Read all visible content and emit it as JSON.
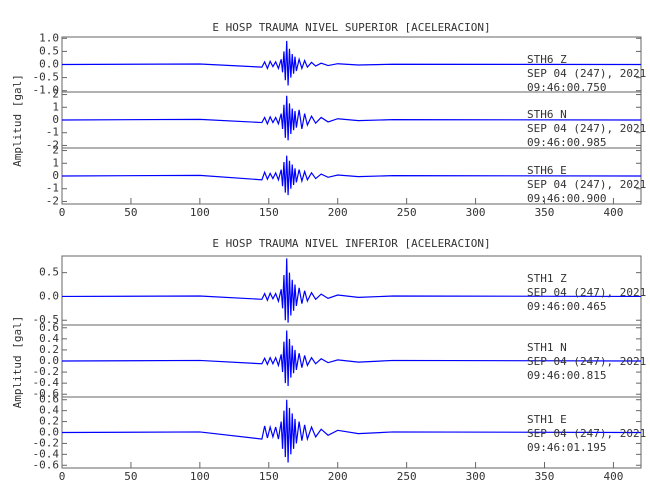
{
  "chart_data": [
    {
      "type": "line",
      "title": "E HOSP TRAUMA NIVEL SUPERIOR [ACELERACION]",
      "ylabel": "Amplitud [gal]",
      "xlim": [
        0,
        420
      ],
      "xticks": [
        0,
        50,
        100,
        150,
        200,
        250,
        300,
        350,
        400
      ],
      "panels": [
        {
          "station": "STH6   Z",
          "date": "SEP 04 (247), 2021",
          "time": "09:46:00.750",
          "ylim": [
            -1.05,
            1.05
          ],
          "yticks": [
            {
              "value": -1,
              "label": "-1.0"
            },
            -0.5,
            {
              "value": 0,
              "label": "0.0"
            },
            0.5,
            {
              "value": 1,
              "label": "1.0"
            }
          ],
          "series": [
            {
              "color": "#0000ff",
              "x": [
                0,
                100,
                145,
                147,
                149,
                151,
                153,
                155,
                157,
                159,
                160,
                161,
                162,
                163,
                164,
                165,
                166,
                167,
                168,
                169,
                170,
                172,
                174,
                176,
                178,
                181,
                184,
                188,
                193,
                200,
                215,
                240,
                420
              ],
              "values": [
                0,
                0.02,
                -0.1,
                0.1,
                -0.15,
                0.12,
                -0.08,
                0.1,
                -0.15,
                0.2,
                -0.3,
                0.5,
                -0.6,
                0.9,
                -0.8,
                0.6,
                -0.5,
                0.4,
                -0.35,
                0.3,
                -0.25,
                0.2,
                -0.15,
                0.15,
                -0.1,
                0.08,
                -0.06,
                0.05,
                -0.04,
                0.03,
                -0.02,
                0.01,
                0
              ]
            }
          ]
        },
        {
          "station": "STH6   N",
          "date": "SEP 04 (247), 2021",
          "time": "09:46:00.985",
          "ylim": [
            -2.2,
            2.2
          ],
          "yticks": [
            -2,
            -1,
            0,
            1,
            2
          ],
          "series": [
            {
              "color": "#0000ff",
              "x": [
                0,
                100,
                145,
                147,
                149,
                151,
                153,
                155,
                157,
                159,
                160,
                161,
                162,
                163,
                164,
                165,
                166,
                167,
                168,
                169,
                170,
                172,
                174,
                176,
                178,
                181,
                184,
                188,
                193,
                200,
                215,
                240,
                420
              ],
              "values": [
                0,
                0.05,
                -0.2,
                0.2,
                -0.3,
                0.25,
                -0.2,
                0.2,
                -0.3,
                0.5,
                -0.7,
                1.2,
                -1.4,
                1.9,
                -1.6,
                1.3,
                -1.1,
                0.9,
                -0.8,
                0.7,
                -0.6,
                0.8,
                -0.7,
                0.5,
                -0.4,
                0.3,
                -0.25,
                0.2,
                -0.15,
                0.1,
                -0.05,
                0.03,
                0
              ]
            }
          ]
        },
        {
          "station": "STH6   E",
          "date": "SEP 04 (247), 2021",
          "time": "09:46:00.900",
          "ylim": [
            -2.2,
            2.2
          ],
          "yticks": [
            -2,
            -1,
            0,
            1,
            2
          ],
          "series": [
            {
              "color": "#0000ff",
              "x": [
                0,
                100,
                145,
                147,
                149,
                151,
                153,
                155,
                157,
                159,
                160,
                161,
                162,
                163,
                164,
                165,
                166,
                167,
                168,
                169,
                170,
                172,
                174,
                176,
                178,
                181,
                184,
                188,
                193,
                200,
                215,
                240,
                420
              ],
              "values": [
                0,
                0.05,
                -0.3,
                0.3,
                -0.25,
                0.2,
                -0.2,
                0.25,
                -0.3,
                0.5,
                -0.8,
                1.1,
                -1.3,
                1.6,
                -1.5,
                1.2,
                -1.0,
                0.9,
                -0.7,
                0.6,
                -0.5,
                0.5,
                -0.4,
                0.35,
                -0.3,
                0.25,
                -0.2,
                0.15,
                -0.1,
                0.08,
                -0.05,
                0.03,
                0
              ]
            }
          ]
        }
      ]
    },
    {
      "type": "line",
      "title": "E HOSP TRAUMA NIVEL INFERIOR [ACELERACION]",
      "ylabel": "Amplitud [gal]",
      "xlim": [
        0,
        420
      ],
      "xticks": [
        0,
        50,
        100,
        150,
        200,
        250,
        300,
        350,
        400
      ],
      "panels": [
        {
          "station": "STH1   Z",
          "date": "SEP 04 (247), 2021",
          "time": "09:46:00.465",
          "ylim": [
            -0.6,
            0.85
          ],
          "yticks": [
            -0.5,
            {
              "value": 0,
              "label": "0.0"
            },
            0.5
          ],
          "series": [
            {
              "color": "#0000ff",
              "x": [
                0,
                100,
                145,
                147,
                149,
                151,
                153,
                155,
                157,
                159,
                160,
                161,
                162,
                163,
                164,
                165,
                166,
                167,
                168,
                169,
                170,
                172,
                174,
                176,
                178,
                181,
                184,
                188,
                193,
                200,
                215,
                240,
                420
              ],
              "values": [
                0,
                0.01,
                -0.06,
                0.06,
                -0.08,
                0.07,
                -0.05,
                0.06,
                -0.1,
                0.15,
                -0.25,
                0.45,
                -0.5,
                0.8,
                -0.55,
                0.5,
                -0.4,
                0.35,
                -0.3,
                0.25,
                -0.2,
                0.18,
                -0.15,
                0.12,
                -0.1,
                0.08,
                -0.06,
                0.05,
                -0.04,
                0.03,
                -0.02,
                0.01,
                0
              ]
            }
          ]
        },
        {
          "station": "STH1   N",
          "date": "SEP 04 (247), 2021",
          "time": "09:46:00.815",
          "ylim": [
            -0.65,
            0.65
          ],
          "yticks": [
            -0.6,
            -0.4,
            -0.2,
            {
              "value": 0,
              "label": "0.0"
            },
            0.2,
            0.4,
            0.6
          ],
          "series": [
            {
              "color": "#0000ff",
              "x": [
                0,
                100,
                145,
                147,
                149,
                151,
                153,
                155,
                157,
                159,
                160,
                161,
                162,
                163,
                164,
                165,
                166,
                167,
                168,
                169,
                170,
                172,
                174,
                176,
                178,
                181,
                184,
                188,
                193,
                200,
                215,
                240,
                420
              ],
              "values": [
                0,
                0.01,
                -0.05,
                0.05,
                -0.06,
                0.06,
                -0.05,
                0.06,
                -0.08,
                0.12,
                -0.2,
                0.35,
                -0.4,
                0.55,
                -0.45,
                0.4,
                -0.3,
                0.28,
                -0.22,
                0.2,
                -0.16,
                0.14,
                -0.12,
                0.1,
                -0.08,
                0.06,
                -0.05,
                0.04,
                -0.03,
                0.02,
                -0.02,
                0.01,
                0
              ]
            }
          ]
        },
        {
          "station": "STH1   E",
          "date": "SEP 04 (247), 2021",
          "time": "09:46:01.195",
          "ylim": [
            -0.65,
            0.65
          ],
          "yticks": [
            -0.6,
            -0.4,
            -0.2,
            {
              "value": 0,
              "label": "0.0"
            },
            0.2,
            0.4,
            0.6
          ],
          "series": [
            {
              "color": "#0000ff",
              "x": [
                0,
                100,
                145,
                147,
                149,
                151,
                153,
                155,
                157,
                159,
                160,
                161,
                162,
                163,
                164,
                165,
                166,
                167,
                168,
                169,
                170,
                172,
                174,
                176,
                178,
                181,
                184,
                188,
                193,
                200,
                215,
                240,
                420
              ],
              "values": [
                0,
                0.01,
                -0.12,
                0.12,
                -0.1,
                0.1,
                -0.08,
                0.1,
                -0.12,
                0.2,
                -0.3,
                0.4,
                -0.45,
                0.6,
                -0.55,
                0.45,
                -0.4,
                0.35,
                -0.3,
                0.25,
                -0.2,
                0.2,
                -0.15,
                0.14,
                -0.12,
                0.1,
                -0.08,
                0.06,
                -0.05,
                0.04,
                -0.02,
                0.01,
                0
              ]
            }
          ]
        }
      ]
    }
  ]
}
